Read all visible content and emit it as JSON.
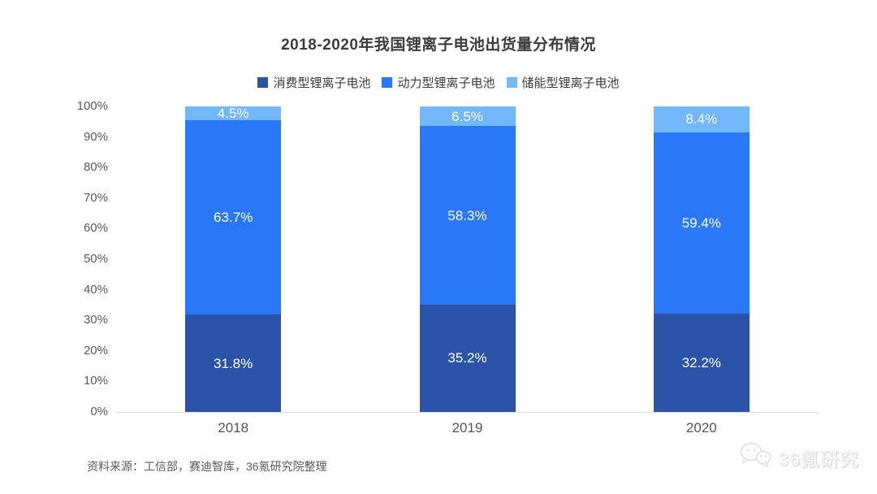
{
  "title": "2018-2020年我国锂离子电池出货量分布情况",
  "chart_data": {
    "type": "bar",
    "stacked": true,
    "title": "2018-2020年我国锂离子电池出货量分布情况",
    "categories": [
      "2018",
      "2019",
      "2020"
    ],
    "series": [
      {
        "name": "消费型锂离子电池",
        "color": "#2b54a8",
        "values": [
          31.8,
          35.2,
          32.2
        ]
      },
      {
        "name": "动力型锂离子电池",
        "color": "#2878f8",
        "values": [
          63.7,
          58.3,
          59.4
        ]
      },
      {
        "name": "储能型锂离子电池",
        "color": "#71b7fa",
        "values": [
          4.5,
          6.5,
          8.4
        ]
      }
    ],
    "value_suffix": "%",
    "xlabel": "",
    "ylabel": "",
    "ylim": [
      0,
      100
    ],
    "y_tick_labels": [
      "0%",
      "10%",
      "20%",
      "30%",
      "40%",
      "50%",
      "60%",
      "70%",
      "80%",
      "90%",
      "100%"
    ],
    "grid": false,
    "legend_position": "top",
    "data_labels": [
      "31.8%",
      "63.7%",
      "4.5%",
      "35.2%",
      "58.3%",
      "6.5%",
      "32.2%",
      "59.4%",
      "8.4%"
    ]
  },
  "source_note": "资料来源：工信部，赛迪智库，36氪研究院整理",
  "watermark": {
    "icon": "wechat-icon",
    "label": "36氪研究"
  }
}
